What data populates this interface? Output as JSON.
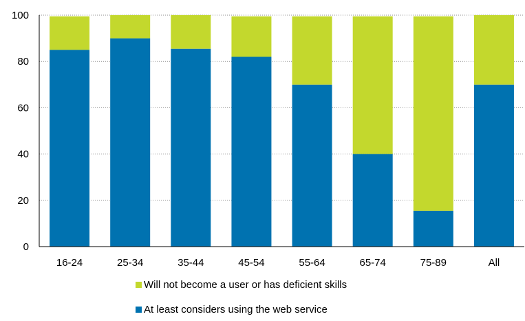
{
  "chart_data": {
    "type": "bar",
    "stacked": true,
    "categories": [
      "16-24",
      "25-34",
      "35-44",
      "45-54",
      "55-64",
      "65-74",
      "75-89",
      "All"
    ],
    "series": [
      {
        "name": "At least considers using the web service",
        "color": "#0072b0",
        "values": [
          85,
          90,
          85.5,
          82,
          70,
          40,
          15.5,
          70
        ]
      },
      {
        "name": "Will not become a user or has deficient skills",
        "color": "#c3d82d",
        "values": [
          14.5,
          10,
          14.5,
          17.5,
          29.5,
          59.5,
          84,
          30
        ]
      }
    ],
    "ylim": [
      0,
      100
    ],
    "yticks": [
      "0",
      "20",
      "40",
      "60",
      "80",
      "100"
    ],
    "grid": true,
    "legend_position": "bottom",
    "title": "",
    "xlabel": "",
    "ylabel": ""
  }
}
